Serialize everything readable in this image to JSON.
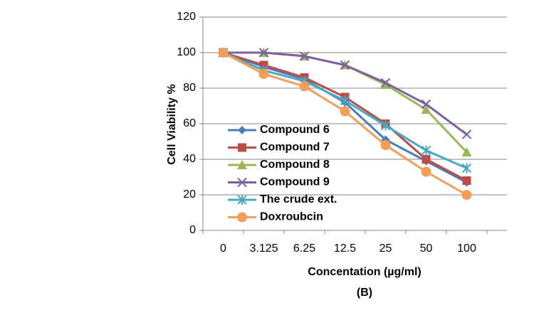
{
  "chart_data": {
    "type": "line",
    "x_label": "Concentation (µg/ml)",
    "y_label": "Cell Viability %",
    "annotation": "(B)",
    "categories": [
      "0",
      "3.125",
      "6.25",
      "12.5",
      "25",
      "50",
      "100"
    ],
    "ylim": [
      0,
      120
    ],
    "yticks": [
      0,
      20,
      40,
      60,
      80,
      100,
      120
    ],
    "grid": true,
    "series": [
      {
        "name": "Compound 6",
        "color": "#4a7ebb",
        "marker": "diamond",
        "values": [
          100,
          92,
          85,
          72,
          51,
          39,
          27
        ]
      },
      {
        "name": "Compound 7",
        "color": "#be4b48",
        "marker": "square",
        "values": [
          100,
          93,
          86,
          75,
          60,
          40,
          28
        ]
      },
      {
        "name": "Compound 8",
        "color": "#98b954",
        "marker": "triangle",
        "values": [
          100,
          100,
          98,
          93,
          82,
          68,
          44
        ]
      },
      {
        "name": "Compound 9",
        "color": "#7d60a0",
        "marker": "x",
        "values": [
          100,
          100,
          98,
          93,
          83,
          71,
          54
        ]
      },
      {
        "name": "The crude ext.",
        "color": "#46aac5",
        "marker": "asterisk",
        "values": [
          100,
          90,
          84,
          73,
          59,
          45,
          35
        ]
      },
      {
        "name": "Doxroubcin",
        "color": "#f59d56",
        "marker": "circle",
        "values": [
          100,
          88,
          81,
          67,
          48,
          33,
          20
        ]
      }
    ]
  }
}
